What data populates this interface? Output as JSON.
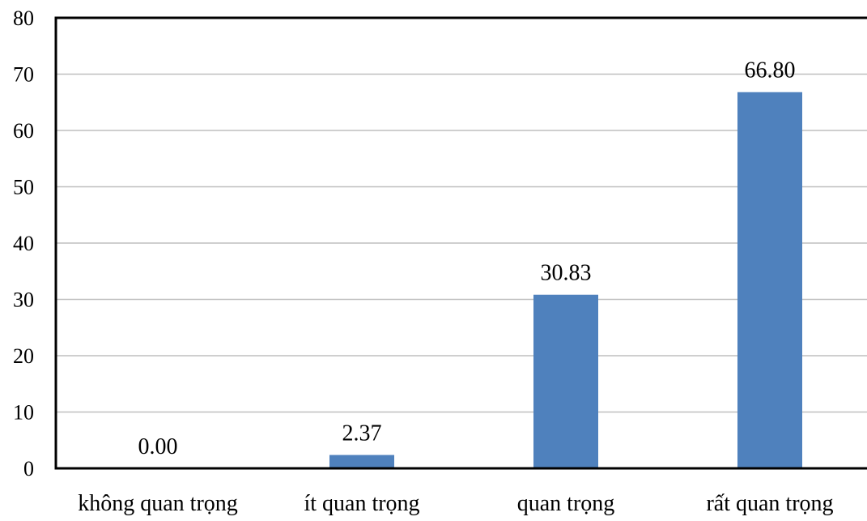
{
  "chart_data": {
    "type": "bar",
    "categories": [
      "không quan trọng",
      "ít quan trọng",
      "quan trọng",
      "rất quan trọng"
    ],
    "values": [
      0.0,
      2.37,
      30.83,
      66.8
    ],
    "value_labels": [
      "0.00",
      "2.37",
      "30.83",
      "66.80"
    ],
    "title": "",
    "xlabel": "",
    "ylabel": "",
    "ylim": [
      0,
      80
    ],
    "yticks": [
      0,
      10,
      20,
      30,
      40,
      50,
      60,
      70,
      80
    ],
    "grid": true,
    "bar_color": "#4F81BD",
    "grid_color": "#BFBFBF",
    "axis_color": "#000000"
  }
}
